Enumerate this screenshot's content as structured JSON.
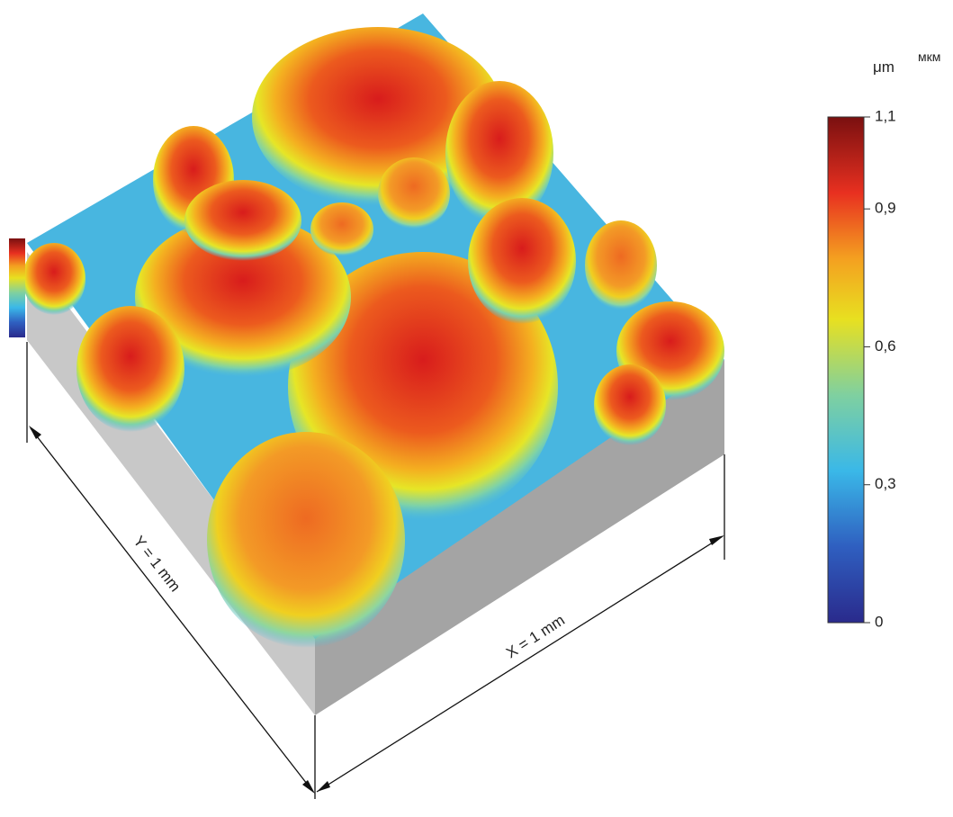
{
  "chart_data": {
    "type": "surface3d",
    "colorbar": {
      "unit": "μm",
      "unit_alt": "мкм",
      "lim": [
        0,
        1.1
      ],
      "ticks": [
        {
          "value": 1.1,
          "label": "1,1"
        },
        {
          "value": 0.9,
          "label": "0,9"
        },
        {
          "value": 0.6,
          "label": "0,6"
        },
        {
          "value": 0.3,
          "label": "0,3"
        },
        0
      ]
    },
    "x_label": "X = 1 mm",
    "y_label": "Y = 1 mm"
  }
}
